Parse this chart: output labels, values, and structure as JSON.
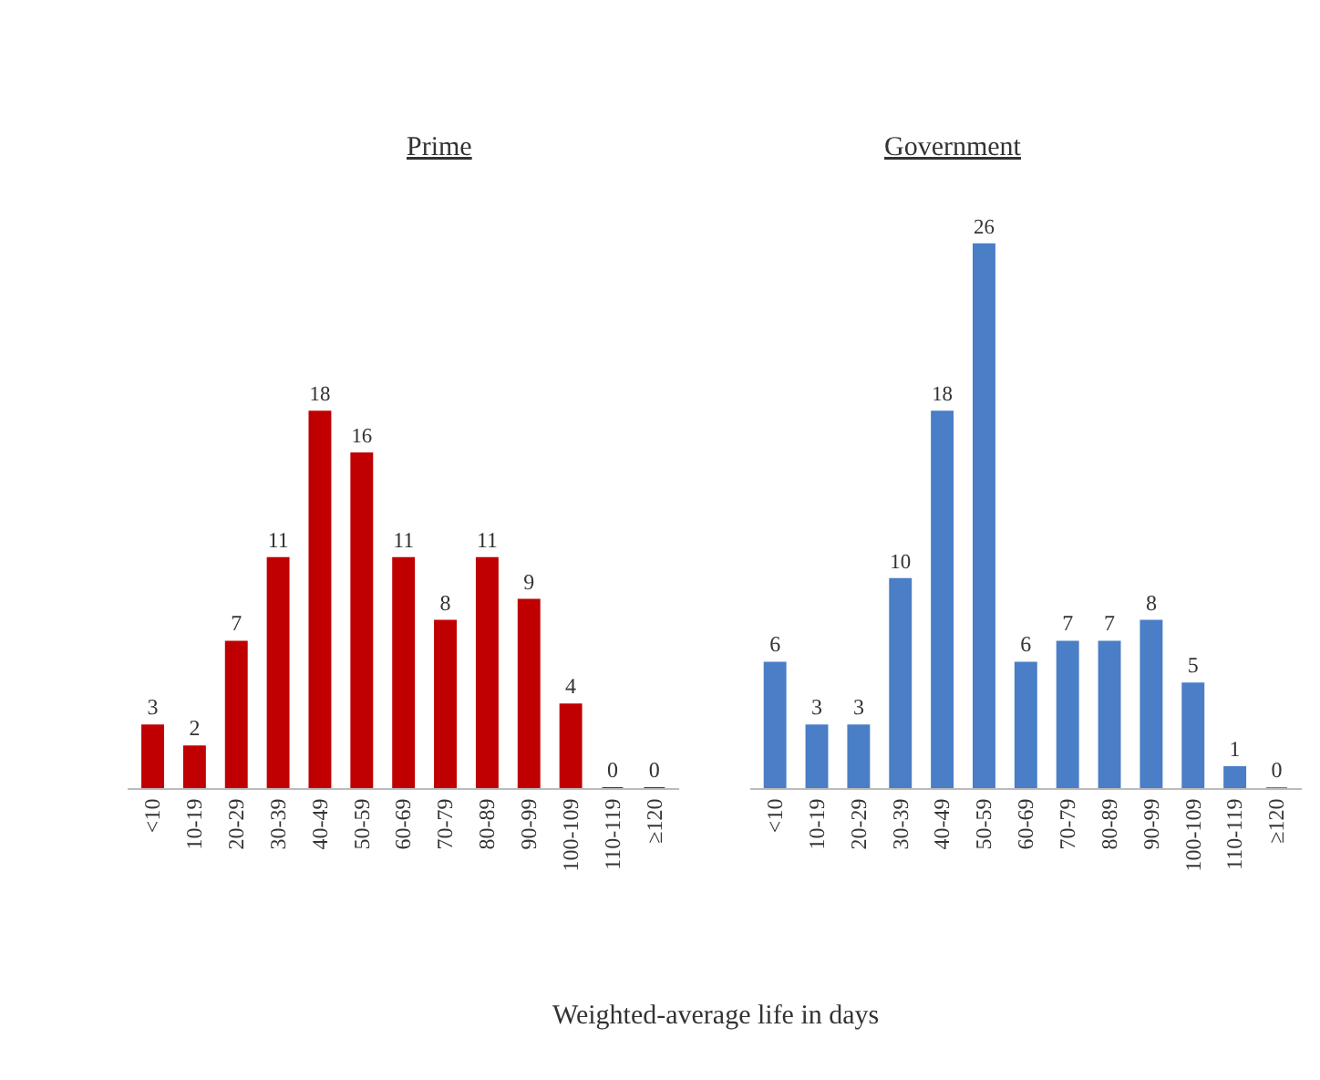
{
  "chart_data": [
    {
      "type": "bar",
      "title": "Prime",
      "xlabel": "Weighted-average life in days",
      "categories": [
        "<10",
        "10-19",
        "20-29",
        "30-39",
        "40-49",
        "50-59",
        "60-69",
        "70-79",
        "80-89",
        "90-99",
        "100-109",
        "110-119",
        "≥120"
      ],
      "values": [
        3,
        2,
        7,
        11,
        18,
        16,
        11,
        8,
        11,
        9,
        4,
        0,
        0
      ],
      "color": "#c00000",
      "data_labels": true,
      "tick_labels": "x"
    },
    {
      "type": "bar",
      "title": "Government",
      "categories": [
        "<10",
        "10-19",
        "20-29",
        "30-39",
        "40-49",
        "50-59",
        "60-69",
        "70-79",
        "80-89",
        "90-99",
        "100-109",
        "110-119",
        "≥120"
      ],
      "values": [
        6,
        3,
        3,
        10,
        18,
        26,
        6,
        7,
        7,
        8,
        5,
        1,
        0
      ],
      "color": "#4a7ec6",
      "data_labels": true,
      "tick_labels": "x"
    }
  ]
}
